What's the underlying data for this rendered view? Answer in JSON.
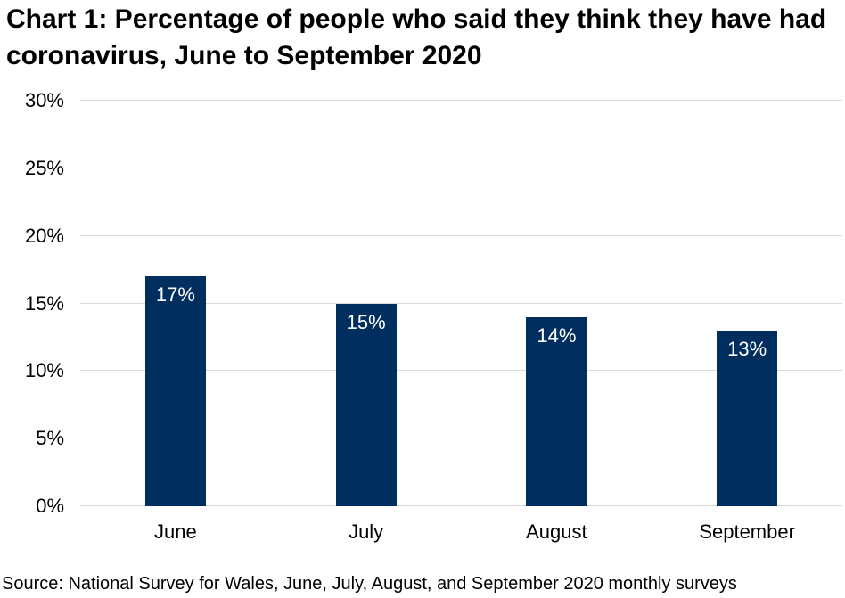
{
  "title": "Chart 1: Percentage of people who said they think they have had coronavirus, June to September 2020",
  "source": "Source: National Survey for Wales, June, July, August, and September 2020 monthly surveys",
  "chart_data": {
    "type": "bar",
    "title": "Chart 1: Percentage of people who said they think they have had coronavirus, June to September 2020",
    "categories": [
      "June",
      "July",
      "August",
      "September"
    ],
    "values": [
      17,
      15,
      14,
      13
    ],
    "data_labels": [
      "17%",
      "15%",
      "14%",
      "13%"
    ],
    "xlabel": "",
    "ylabel": "",
    "ylim": [
      0,
      30
    ],
    "ytick_step": 5,
    "ytick_labels": [
      "0%",
      "5%",
      "10%",
      "15%",
      "20%",
      "25%",
      "30%"
    ],
    "grid": true,
    "legend": "none",
    "bar_color": "#002F5F",
    "data_label_color": "#FFFFFF",
    "gridline_color": "#D9D9D9",
    "axis_text_color": "#000000",
    "source_note": "Source: National Survey for Wales, June, July, August, and September 2020 monthly surveys"
  }
}
